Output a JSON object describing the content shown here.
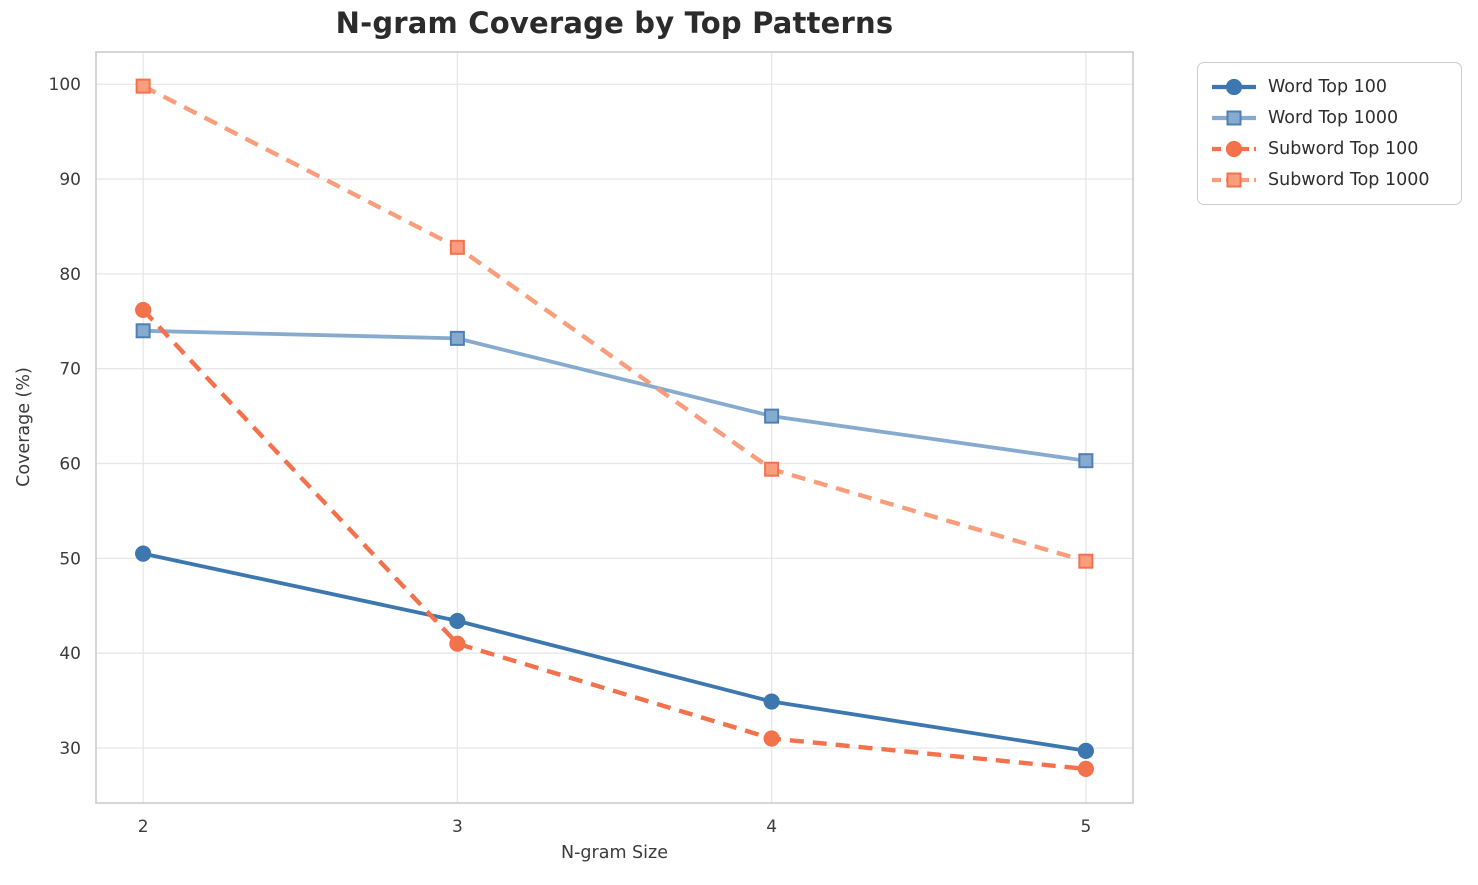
{
  "chart_data": {
    "type": "line",
    "title": "N-gram Coverage by Top Patterns",
    "xlabel": "N-gram Size",
    "ylabel": "Coverage (%)",
    "x": [
      2,
      3,
      4,
      5
    ],
    "xticks": [
      "2",
      "3",
      "4",
      "5"
    ],
    "yticks": [
      30,
      40,
      50,
      60,
      70,
      80,
      90,
      100
    ],
    "xlim": [
      1.85,
      5.15
    ],
    "ylim": [
      24.2,
      103.4
    ],
    "grid": true,
    "grid_color": "#e7e7e7",
    "spine_color": "#cccccc",
    "tick_label_color": "#3b3b3b",
    "title_color": "#2b2b2b",
    "legend_position": "outside-right-top",
    "series": [
      {
        "name": "Word Top 100",
        "values": [
          50.5,
          43.4,
          34.9,
          29.7
        ],
        "color": "#3d77af",
        "edge_color": "#3d77af",
        "line_style": "solid",
        "marker": "circle"
      },
      {
        "name": "Word Top 1000",
        "values": [
          74.0,
          73.2,
          65.0,
          60.3
        ],
        "color": "#87abce",
        "edge_color": "#4d80b4",
        "line_style": "solid",
        "marker": "square"
      },
      {
        "name": "Subword Top 100",
        "values": [
          76.2,
          41.0,
          31.0,
          27.8
        ],
        "color": "#f3714b",
        "edge_color": "#f3714b",
        "line_style": "dashed",
        "marker": "circle"
      },
      {
        "name": "Subword Top 1000",
        "values": [
          99.8,
          82.8,
          59.4,
          49.7
        ],
        "color": "#f89e7c",
        "edge_color": "#f3714b",
        "line_style": "dashed",
        "marker": "square"
      }
    ]
  }
}
